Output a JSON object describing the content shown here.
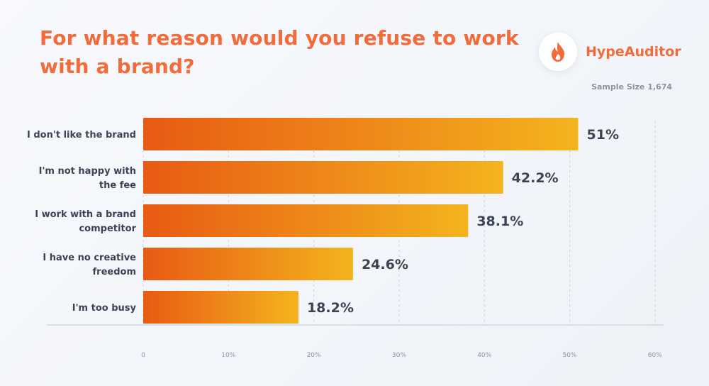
{
  "title": "For what reason would you refuse to work with a brand?",
  "brand": {
    "name": "HypeAuditor",
    "icon": "flame-icon"
  },
  "sample_size": "Sample Size 1,674",
  "colors": {
    "accent": "#f26b3a",
    "bar_start": "#e85a13",
    "bar_end": "#f4b41e"
  },
  "chart_data": {
    "type": "bar",
    "orientation": "horizontal",
    "categories": [
      [
        "I don't like the brand"
      ],
      [
        "I'm not happy with",
        "the fee"
      ],
      [
        "I work with a brand",
        "competitor"
      ],
      [
        "I have no creative",
        "freedom"
      ],
      [
        "I'm too busy"
      ]
    ],
    "values": [
      51,
      42.2,
      38.1,
      24.6,
      18.2
    ],
    "value_labels": [
      "51%",
      "42.2%",
      "38.1%",
      "24.6%",
      "18.2%"
    ],
    "xlim": [
      0,
      60
    ],
    "xticks": [
      "0",
      "10%",
      "20%",
      "30%",
      "40%",
      "50%",
      "60%"
    ],
    "grid": "vertical dashed"
  }
}
